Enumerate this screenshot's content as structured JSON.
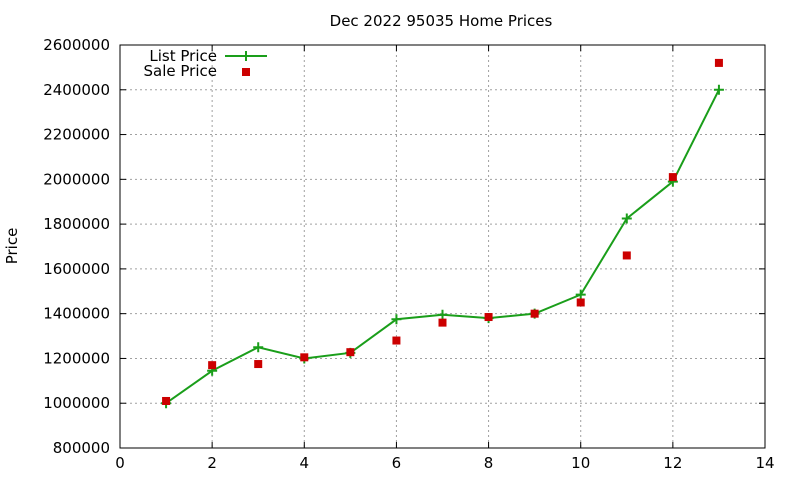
{
  "chart_data": {
    "type": "line",
    "title": "Dec 2022 95035 Home Prices",
    "xlabel": "",
    "ylabel": "Price",
    "xlim": [
      0,
      14
    ],
    "ylim": [
      800000,
      2600000
    ],
    "x_ticks": [
      0,
      2,
      4,
      6,
      8,
      10,
      12,
      14
    ],
    "y_ticks": [
      800000,
      1000000,
      1200000,
      1400000,
      1600000,
      1800000,
      2000000,
      2200000,
      2400000,
      2600000
    ],
    "grid": true,
    "legend_position": "top-left",
    "series": [
      {
        "name": "List Price",
        "style": "line-with-plus-markers",
        "color": "#1a9e1a",
        "x": [
          1,
          2,
          3,
          4,
          5,
          6,
          7,
          8,
          9,
          10,
          11,
          12,
          13
        ],
        "values": [
          1000000,
          1145000,
          1250000,
          1200000,
          1225000,
          1375000,
          1395000,
          1380000,
          1400000,
          1485000,
          1825000,
          1990000,
          2400000
        ]
      },
      {
        "name": "Sale Price",
        "style": "square-markers",
        "color": "#cc0000",
        "x": [
          1,
          2,
          3,
          4,
          5,
          6,
          7,
          8,
          9,
          10,
          11,
          12,
          13
        ],
        "values": [
          1010000,
          1170000,
          1175000,
          1205000,
          1228000,
          1280000,
          1360000,
          1385000,
          1400000,
          1450000,
          1660000,
          2010000,
          2520000
        ]
      }
    ]
  }
}
